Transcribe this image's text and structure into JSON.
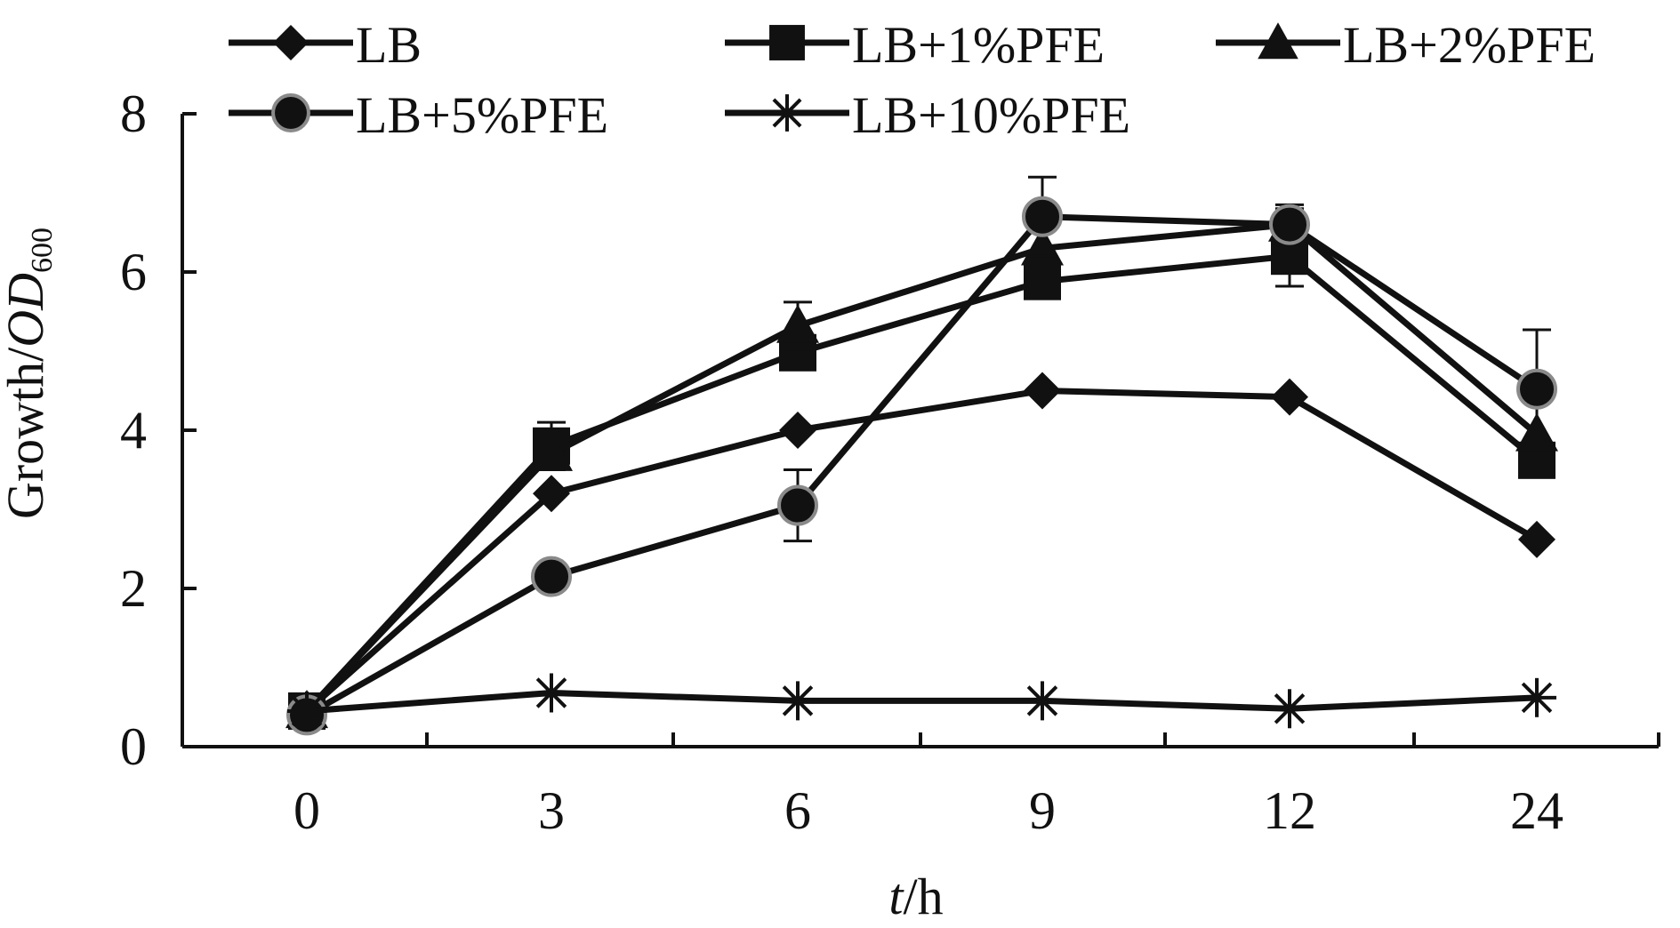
{
  "chart_data": {
    "type": "line",
    "categories": [
      "0",
      "3",
      "6",
      "9",
      "12",
      "24"
    ],
    "ylabel": {
      "main": "Growth/",
      "italic": "OD",
      "sub": "600"
    },
    "xlabel": {
      "italic": "t",
      "rest": "/h"
    },
    "y_ticks": [
      "0",
      "2",
      "4",
      "6",
      "8"
    ],
    "ylim": [
      0,
      8
    ],
    "grid": false,
    "legend_position": "top",
    "series": [
      {
        "name": "LB",
        "marker": "diamond",
        "values": [
          0.45,
          3.2,
          4.0,
          4.5,
          4.42,
          2.62
        ],
        "errors": [
          0,
          0,
          0,
          0,
          0,
          0
        ]
      },
      {
        "name": "LB+1%PFE",
        "marker": "square",
        "values": [
          0.45,
          3.8,
          4.98,
          5.88,
          6.2,
          3.62
        ],
        "errors": [
          0,
          0.3,
          0,
          0,
          0.38,
          0
        ]
      },
      {
        "name": "LB+2%PFE",
        "marker": "triangle",
        "values": [
          0.45,
          3.7,
          5.32,
          6.3,
          6.6,
          3.95
        ],
        "errors": [
          0,
          0,
          0.3,
          0,
          0.25,
          0
        ]
      },
      {
        "name": "LB+5%PFE",
        "marker": "circle",
        "values": [
          0.4,
          2.15,
          3.05,
          6.7,
          6.6,
          4.52
        ],
        "errors": [
          0,
          0,
          0.45,
          0.5,
          0.2,
          0.75
        ]
      },
      {
        "name": "LB+10%PFE",
        "marker": "asterisk",
        "values": [
          0.45,
          0.68,
          0.58,
          0.58,
          0.48,
          0.62
        ],
        "errors": [
          0,
          0,
          0,
          0,
          0,
          0
        ]
      }
    ],
    "colors": {
      "ink": "#111111",
      "circle_stroke": "#8a8a8a"
    }
  }
}
